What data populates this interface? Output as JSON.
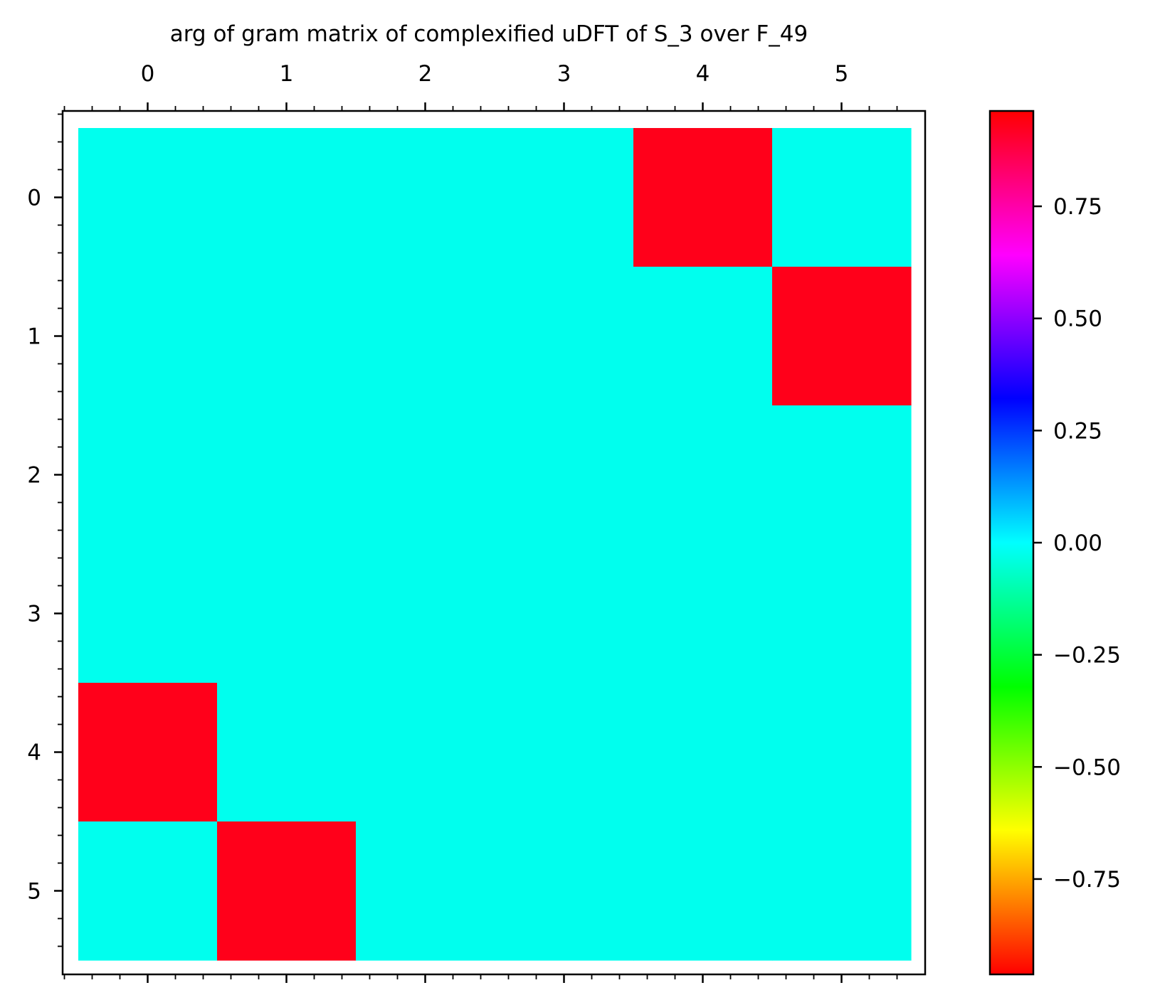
{
  "chart_data": {
    "type": "heatmap",
    "title": "arg of gram matrix of complexified uDFT of S_3 over F_49",
    "x_tick_labels": [
      "0",
      "1",
      "2",
      "3",
      "4",
      "5"
    ],
    "y_tick_labels": [
      "0",
      "1",
      "2",
      "3",
      "4",
      "5"
    ],
    "x_axis_position": "top",
    "matrix": [
      [
        0,
        0,
        0,
        0,
        -1,
        0
      ],
      [
        0,
        0,
        0,
        0,
        0,
        -1
      ],
      [
        0,
        0,
        0,
        0,
        0,
        0
      ],
      [
        0,
        0,
        0,
        0,
        0,
        0
      ],
      [
        -1,
        0,
        0,
        0,
        0,
        0
      ],
      [
        0,
        -1,
        0,
        0,
        0,
        0
      ]
    ],
    "colormap": "hsv",
    "color_range": [
      -1,
      1
    ],
    "zero_color": "#00ffee",
    "negative_color": "#ff001a",
    "colorbar": {
      "placement": "right",
      "tick_values": [
        0.75,
        0.5,
        0.25,
        0.0,
        -0.25,
        -0.5,
        -0.75
      ],
      "tick_labels": [
        "0.75",
        "0.50",
        "0.25",
        "0.00",
        "−0.25",
        "−0.50",
        "−0.75"
      ]
    }
  }
}
